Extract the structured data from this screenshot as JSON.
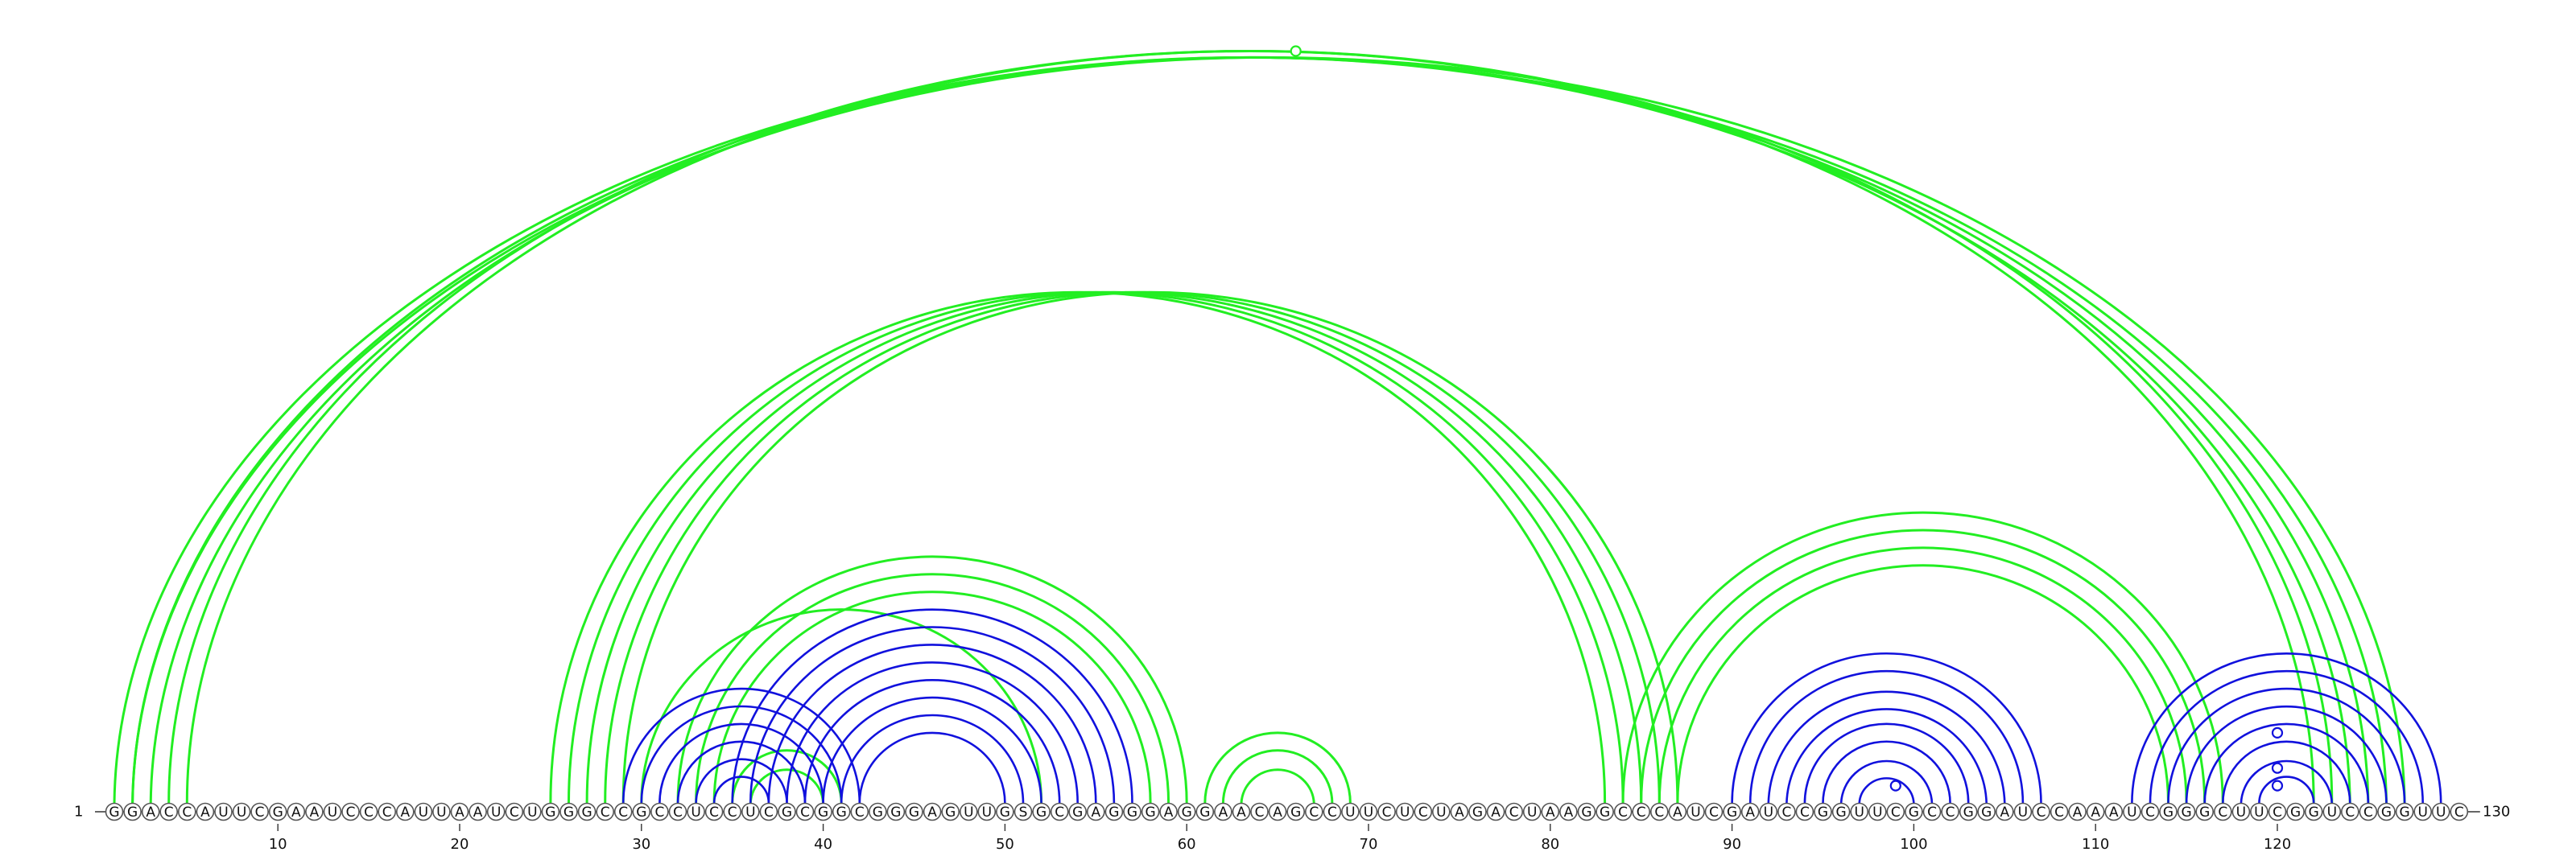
{
  "diagram": {
    "start_label": "1",
    "end_label": "130",
    "sequence": "GGACCAUUCGAAUCCCAUUAAUCUGGGCCGCCUCCUCGCGGCGGGAGUUGSGCGAGGGAGGAACAGCCUUCUCUAGACUAAGGCCCAUCGAUCCGGUUCGCCGGAUCCAAAUCGGGCUUCGGUCCGGUUC",
    "ticks": [
      10,
      20,
      30,
      40,
      50,
      60,
      70,
      80,
      90,
      100,
      110,
      120
    ],
    "colors": {
      "green": "#22ee22",
      "blue": "#1111dd"
    },
    "green_pairs": [
      [
        1,
        126
      ],
      [
        2,
        125
      ],
      [
        3,
        124
      ],
      [
        4,
        123
      ],
      [
        5,
        122
      ],
      [
        2,
        127
      ],
      [
        25,
        83
      ],
      [
        26,
        84
      ],
      [
        27,
        85
      ],
      [
        28,
        86
      ],
      [
        29,
        87
      ],
      [
        30,
        52
      ],
      [
        32,
        60
      ],
      [
        33,
        59
      ],
      [
        34,
        58
      ],
      [
        35,
        41
      ],
      [
        36,
        40
      ],
      [
        61,
        69
      ],
      [
        62,
        68
      ],
      [
        63,
        67
      ],
      [
        84,
        117
      ],
      [
        85,
        116
      ],
      [
        86,
        115
      ],
      [
        87,
        114
      ]
    ],
    "blue_pairs": [
      [
        29,
        42
      ],
      [
        30,
        41
      ],
      [
        31,
        40
      ],
      [
        32,
        39
      ],
      [
        33,
        38
      ],
      [
        34,
        37
      ],
      [
        35,
        57
      ],
      [
        36,
        56
      ],
      [
        37,
        55
      ],
      [
        38,
        54
      ],
      [
        39,
        53
      ],
      [
        40,
        52
      ],
      [
        41,
        51
      ],
      [
        42,
        50
      ],
      [
        90,
        107
      ],
      [
        91,
        106
      ],
      [
        92,
        105
      ],
      [
        93,
        104
      ],
      [
        94,
        103
      ],
      [
        95,
        102
      ],
      [
        96,
        101
      ],
      [
        97,
        100
      ],
      [
        112,
        129
      ],
      [
        113,
        128
      ],
      [
        114,
        127
      ],
      [
        115,
        126
      ],
      [
        116,
        125
      ],
      [
        117,
        124
      ],
      [
        118,
        123
      ],
      [
        119,
        122
      ]
    ],
    "markers": [
      {
        "pos": 66,
        "color": "green",
        "pair": [
          1,
          131
        ]
      },
      {
        "pos": 120,
        "color": "blue",
        "pair": [
          116,
          124
        ]
      },
      {
        "pos": 120,
        "color": "blue",
        "pair": [
          118,
          122
        ]
      },
      {
        "pos": 120,
        "color": "blue",
        "pair": [
          119,
          121
        ]
      },
      {
        "pos": 99,
        "color": "blue",
        "pair": [
          98,
          100
        ]
      }
    ]
  }
}
